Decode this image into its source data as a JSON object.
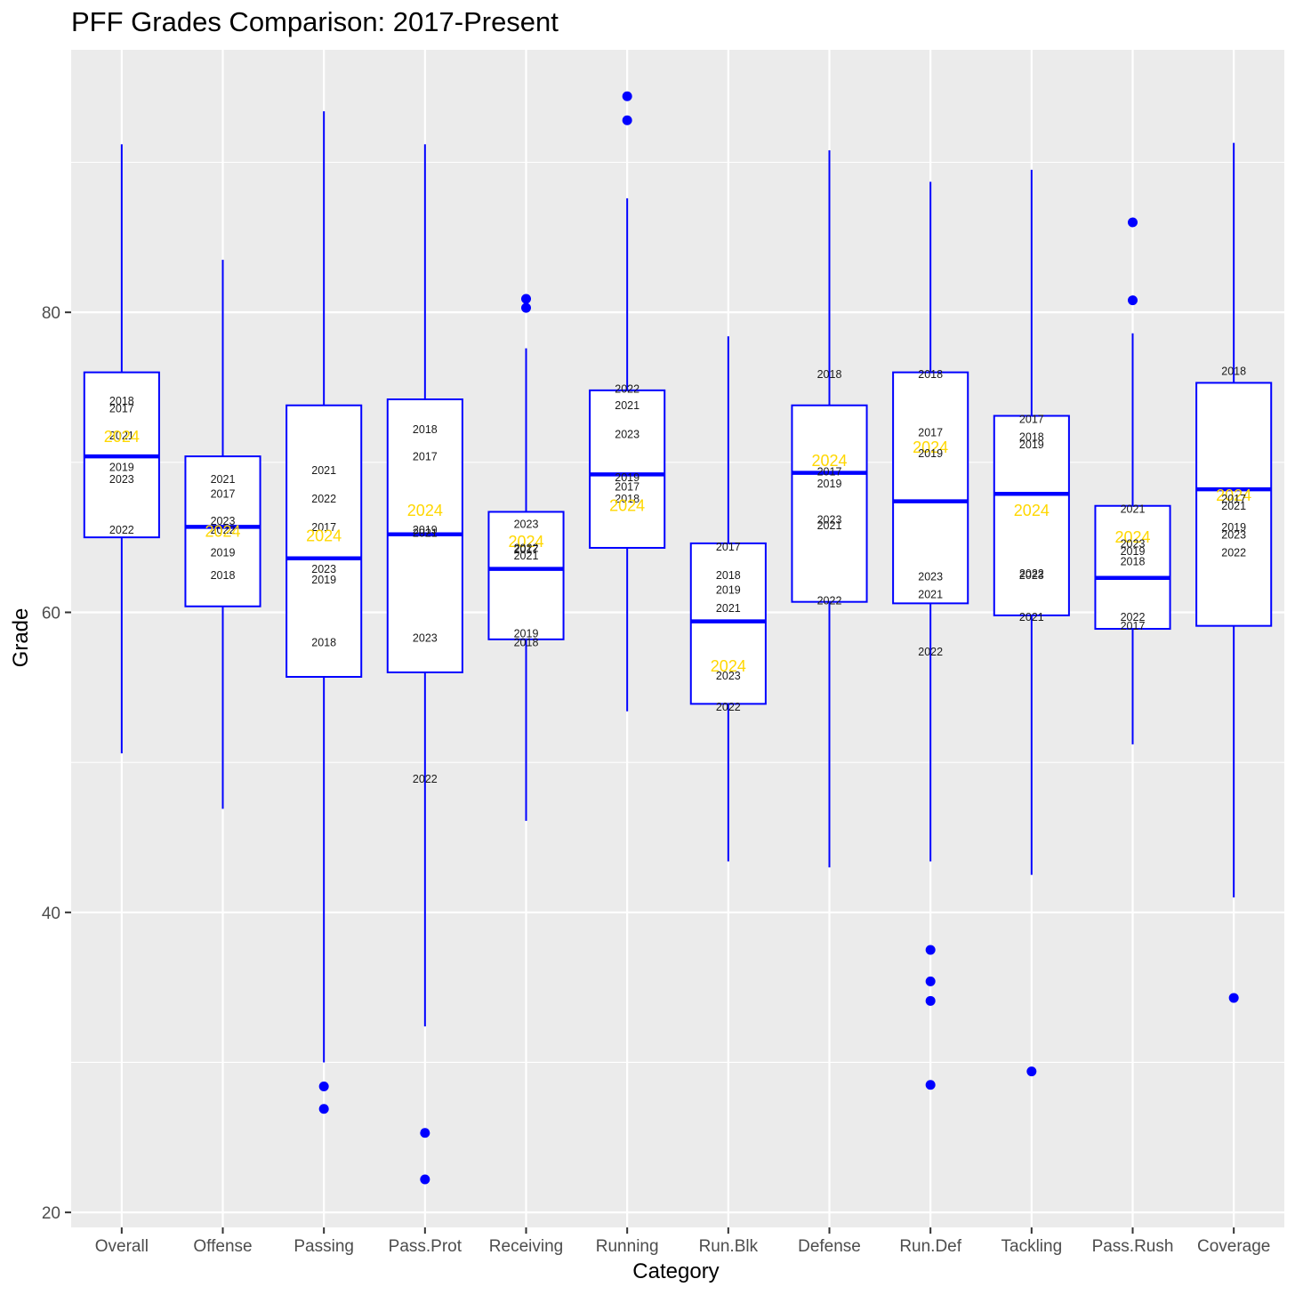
{
  "chart_data": {
    "type": "box",
    "title": "PFF Grades Comparison: 2017-Present",
    "xlabel": "Category",
    "ylabel": "Grade",
    "ylim": [
      19,
      97.5
    ],
    "yticks": [
      20,
      40,
      60,
      80
    ],
    "grid": true,
    "panel_background": "#ebebeb",
    "grid_color": "#ffffff",
    "box_color": "#0000ff",
    "highlight_color": "#ffd700",
    "highlight_year": "2024",
    "categories": [
      "Overall",
      "Offense",
      "Passing",
      "Pass.Prot",
      "Receiving",
      "Running",
      "Run.Blk",
      "Defense",
      "Run.Def",
      "Tackling",
      "Pass.Rush",
      "Coverage"
    ],
    "boxes": [
      {
        "category": "Overall",
        "lower_whisker": 50.6,
        "q1": 65.0,
        "median": 70.4,
        "q3": 76.0,
        "upper_whisker": 91.2,
        "outliers": [],
        "labels": [
          {
            "year": "2018",
            "grade": 74.1
          },
          {
            "year": "2017",
            "grade": 73.6
          },
          {
            "year": "2021",
            "grade": 71.8
          },
          {
            "year": "2024",
            "grade": 71.7
          },
          {
            "year": "2019",
            "grade": 69.7
          },
          {
            "year": "2023",
            "grade": 68.9
          },
          {
            "year": "2022",
            "grade": 65.5
          }
        ]
      },
      {
        "category": "Offense",
        "lower_whisker": 46.9,
        "q1": 60.4,
        "median": 65.7,
        "q3": 70.4,
        "upper_whisker": 83.5,
        "outliers": [],
        "labels": [
          {
            "year": "2021",
            "grade": 68.9
          },
          {
            "year": "2017",
            "grade": 67.9
          },
          {
            "year": "2023",
            "grade": 66.1
          },
          {
            "year": "2022",
            "grade": 65.5
          },
          {
            "year": "2024",
            "grade": 65.4
          },
          {
            "year": "2019",
            "grade": 64.0
          },
          {
            "year": "2018",
            "grade": 62.5
          }
        ]
      },
      {
        "category": "Passing",
        "lower_whisker": 30.0,
        "q1": 55.7,
        "median": 63.6,
        "q3": 73.8,
        "upper_whisker": 93.4,
        "outliers": [
          28.4,
          26.9
        ],
        "labels": [
          {
            "year": "2021",
            "grade": 69.5
          },
          {
            "year": "2022",
            "grade": 67.6
          },
          {
            "year": "2017",
            "grade": 65.7
          },
          {
            "year": "2024",
            "grade": 65.1
          },
          {
            "year": "2023",
            "grade": 62.9
          },
          {
            "year": "2019",
            "grade": 62.2
          },
          {
            "year": "2018",
            "grade": 58.0
          }
        ]
      },
      {
        "category": "Pass.Prot",
        "lower_whisker": 32.4,
        "q1": 56.0,
        "median": 65.2,
        "q3": 74.2,
        "upper_whisker": 91.2,
        "outliers": [
          25.3,
          22.2
        ],
        "labels": [
          {
            "year": "2018",
            "grade": 72.2
          },
          {
            "year": "2017",
            "grade": 70.4
          },
          {
            "year": "2024",
            "grade": 66.8
          },
          {
            "year": "2019",
            "grade": 65.5
          },
          {
            "year": "2021",
            "grade": 65.3
          },
          {
            "year": "2023",
            "grade": 58.3
          },
          {
            "year": "2022",
            "grade": 48.9
          }
        ]
      },
      {
        "category": "Receiving",
        "lower_whisker": 46.1,
        "q1": 58.2,
        "median": 62.9,
        "q3": 66.7,
        "upper_whisker": 77.6,
        "outliers": [
          80.9,
          80.3
        ],
        "labels": [
          {
            "year": "2023",
            "grade": 65.9
          },
          {
            "year": "2024",
            "grade": 64.7
          },
          {
            "year": "2022",
            "grade": 64.3
          },
          {
            "year": "2017",
            "grade": 64.2
          },
          {
            "year": "2021",
            "grade": 63.8
          },
          {
            "year": "2019",
            "grade": 58.6
          },
          {
            "year": "2018",
            "grade": 58.0
          }
        ]
      },
      {
        "category": "Running",
        "lower_whisker": 53.4,
        "q1": 64.3,
        "median": 69.2,
        "q3": 74.8,
        "upper_whisker": 87.6,
        "outliers": [
          94.4,
          92.8
        ],
        "labels": [
          {
            "year": "2022",
            "grade": 74.9
          },
          {
            "year": "2021",
            "grade": 73.8
          },
          {
            "year": "2023",
            "grade": 71.9
          },
          {
            "year": "2019",
            "grade": 69.0
          },
          {
            "year": "2017",
            "grade": 68.4
          },
          {
            "year": "2018",
            "grade": 67.6
          },
          {
            "year": "2024",
            "grade": 67.1
          }
        ]
      },
      {
        "category": "Run.Blk",
        "lower_whisker": 43.4,
        "q1": 53.9,
        "median": 59.4,
        "q3": 64.6,
        "upper_whisker": 78.4,
        "outliers": [],
        "labels": [
          {
            "year": "2017",
            "grade": 64.4
          },
          {
            "year": "2018",
            "grade": 62.5
          },
          {
            "year": "2019",
            "grade": 61.5
          },
          {
            "year": "2021",
            "grade": 60.3
          },
          {
            "year": "2024",
            "grade": 56.4
          },
          {
            "year": "2023",
            "grade": 55.8
          },
          {
            "year": "2022",
            "grade": 53.7
          }
        ]
      },
      {
        "category": "Defense",
        "lower_whisker": 43.0,
        "q1": 60.7,
        "median": 69.3,
        "q3": 73.8,
        "upper_whisker": 90.8,
        "outliers": [],
        "labels": [
          {
            "year": "2018",
            "grade": 75.9
          },
          {
            "year": "2024",
            "grade": 70.1
          },
          {
            "year": "2017",
            "grade": 69.4
          },
          {
            "year": "2019",
            "grade": 68.6
          },
          {
            "year": "2023",
            "grade": 66.2
          },
          {
            "year": "2021",
            "grade": 65.8
          },
          {
            "year": "2022",
            "grade": 60.8
          }
        ]
      },
      {
        "category": "Run.Def",
        "lower_whisker": 43.4,
        "q1": 60.6,
        "median": 67.4,
        "q3": 76.0,
        "upper_whisker": 88.7,
        "outliers": [
          37.5,
          35.4,
          34.1,
          28.5
        ],
        "labels": [
          {
            "year": "2018",
            "grade": 75.9
          },
          {
            "year": "2017",
            "grade": 72.0
          },
          {
            "year": "2024",
            "grade": 71.0
          },
          {
            "year": "2019",
            "grade": 70.6
          },
          {
            "year": "2023",
            "grade": 62.4
          },
          {
            "year": "2021",
            "grade": 61.2
          },
          {
            "year": "2022",
            "grade": 57.4
          }
        ]
      },
      {
        "category": "Tackling",
        "lower_whisker": 42.5,
        "q1": 59.8,
        "median": 67.9,
        "q3": 73.1,
        "upper_whisker": 89.5,
        "outliers": [
          29.4
        ],
        "labels": [
          {
            "year": "2017",
            "grade": 72.9
          },
          {
            "year": "2018",
            "grade": 71.7
          },
          {
            "year": "2019",
            "grade": 71.2
          },
          {
            "year": "2024",
            "grade": 66.8
          },
          {
            "year": "2022",
            "grade": 62.6
          },
          {
            "year": "2023",
            "grade": 62.5
          },
          {
            "year": "2021",
            "grade": 59.7
          }
        ]
      },
      {
        "category": "Pass.Rush",
        "lower_whisker": 51.2,
        "q1": 58.9,
        "median": 62.3,
        "q3": 67.1,
        "upper_whisker": 78.6,
        "outliers": [
          86.0,
          80.8
        ],
        "labels": [
          {
            "year": "2021",
            "grade": 66.9
          },
          {
            "year": "2024",
            "grade": 65.0
          },
          {
            "year": "2023",
            "grade": 64.6
          },
          {
            "year": "2019",
            "grade": 64.1
          },
          {
            "year": "2018",
            "grade": 63.4
          },
          {
            "year": "2022",
            "grade": 59.7
          },
          {
            "year": "2017",
            "grade": 59.1
          }
        ]
      },
      {
        "category": "Coverage",
        "lower_whisker": 41.0,
        "q1": 59.1,
        "median": 68.2,
        "q3": 75.3,
        "upper_whisker": 91.3,
        "outliers": [
          34.3
        ],
        "labels": [
          {
            "year": "2018",
            "grade": 76.1
          },
          {
            "year": "2024",
            "grade": 67.8
          },
          {
            "year": "2017",
            "grade": 67.6
          },
          {
            "year": "2021",
            "grade": 67.1
          },
          {
            "year": "2019",
            "grade": 65.7
          },
          {
            "year": "2023",
            "grade": 65.2
          },
          {
            "year": "2022",
            "grade": 64.0
          }
        ]
      }
    ]
  }
}
